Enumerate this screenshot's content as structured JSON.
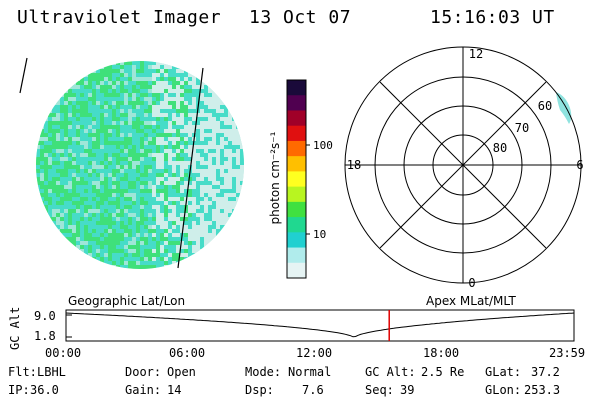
{
  "header": {
    "instrument": "Ultraviolet Imager",
    "date": "13 Oct 07",
    "time": "15:16:03 UT"
  },
  "colorbar": {
    "unit_label": "photon cm⁻²s⁻¹",
    "tick_labels": [
      "100",
      "10"
    ],
    "colors": [
      "#1a0a3a",
      "#500050",
      "#a00028",
      "#e01010",
      "#ff6a00",
      "#ffbf00",
      "#ffff20",
      "#b8f520",
      "#40e040",
      "#20d890",
      "#20d0d0",
      "#b0ecec",
      "#e6f4f4"
    ]
  },
  "polar_plot": {
    "mlt_labels": [
      "12",
      "18",
      "6",
      "0"
    ],
    "lat_labels": [
      "60",
      "70",
      "80"
    ]
  },
  "altitude_strip": {
    "ylabel": "GC Alt",
    "left_title": "Geographic Lat/Lon",
    "right_title": "Apex MLat/MLT",
    "y_ticks": [
      "9.0",
      "1.8"
    ],
    "x_ticks": [
      "00:00",
      "06:00",
      "12:00",
      "18:00",
      "23:59"
    ],
    "current_time_hours": 15.27,
    "trace_color": "#000000",
    "marker_color": "#e00000"
  },
  "status": {
    "row1": [
      {
        "label": "Flt:",
        "value": "LBHL"
      },
      {
        "label": "Door:",
        "value": "Open"
      },
      {
        "label": "Mode:",
        "value": "Normal"
      },
      {
        "label": "GC Alt:",
        "value": "2.5 Re"
      },
      {
        "label": "GLat:",
        "value": "37.2"
      }
    ],
    "row2": [
      {
        "label": "IP:",
        "value": "36.0"
      },
      {
        "label": "Gain:",
        "value": "14"
      },
      {
        "label": "Dsp:",
        "value": "7.6"
      },
      {
        "label": "Seq:",
        "value": "39"
      },
      {
        "label": "GLon:",
        "value": "253.3"
      }
    ]
  },
  "colors": {
    "earth_base": "#9fe6d8",
    "earth_green": "#3fe07a",
    "earth_cyan": "#46dcc8",
    "earth_pale": "#cfeeea"
  }
}
